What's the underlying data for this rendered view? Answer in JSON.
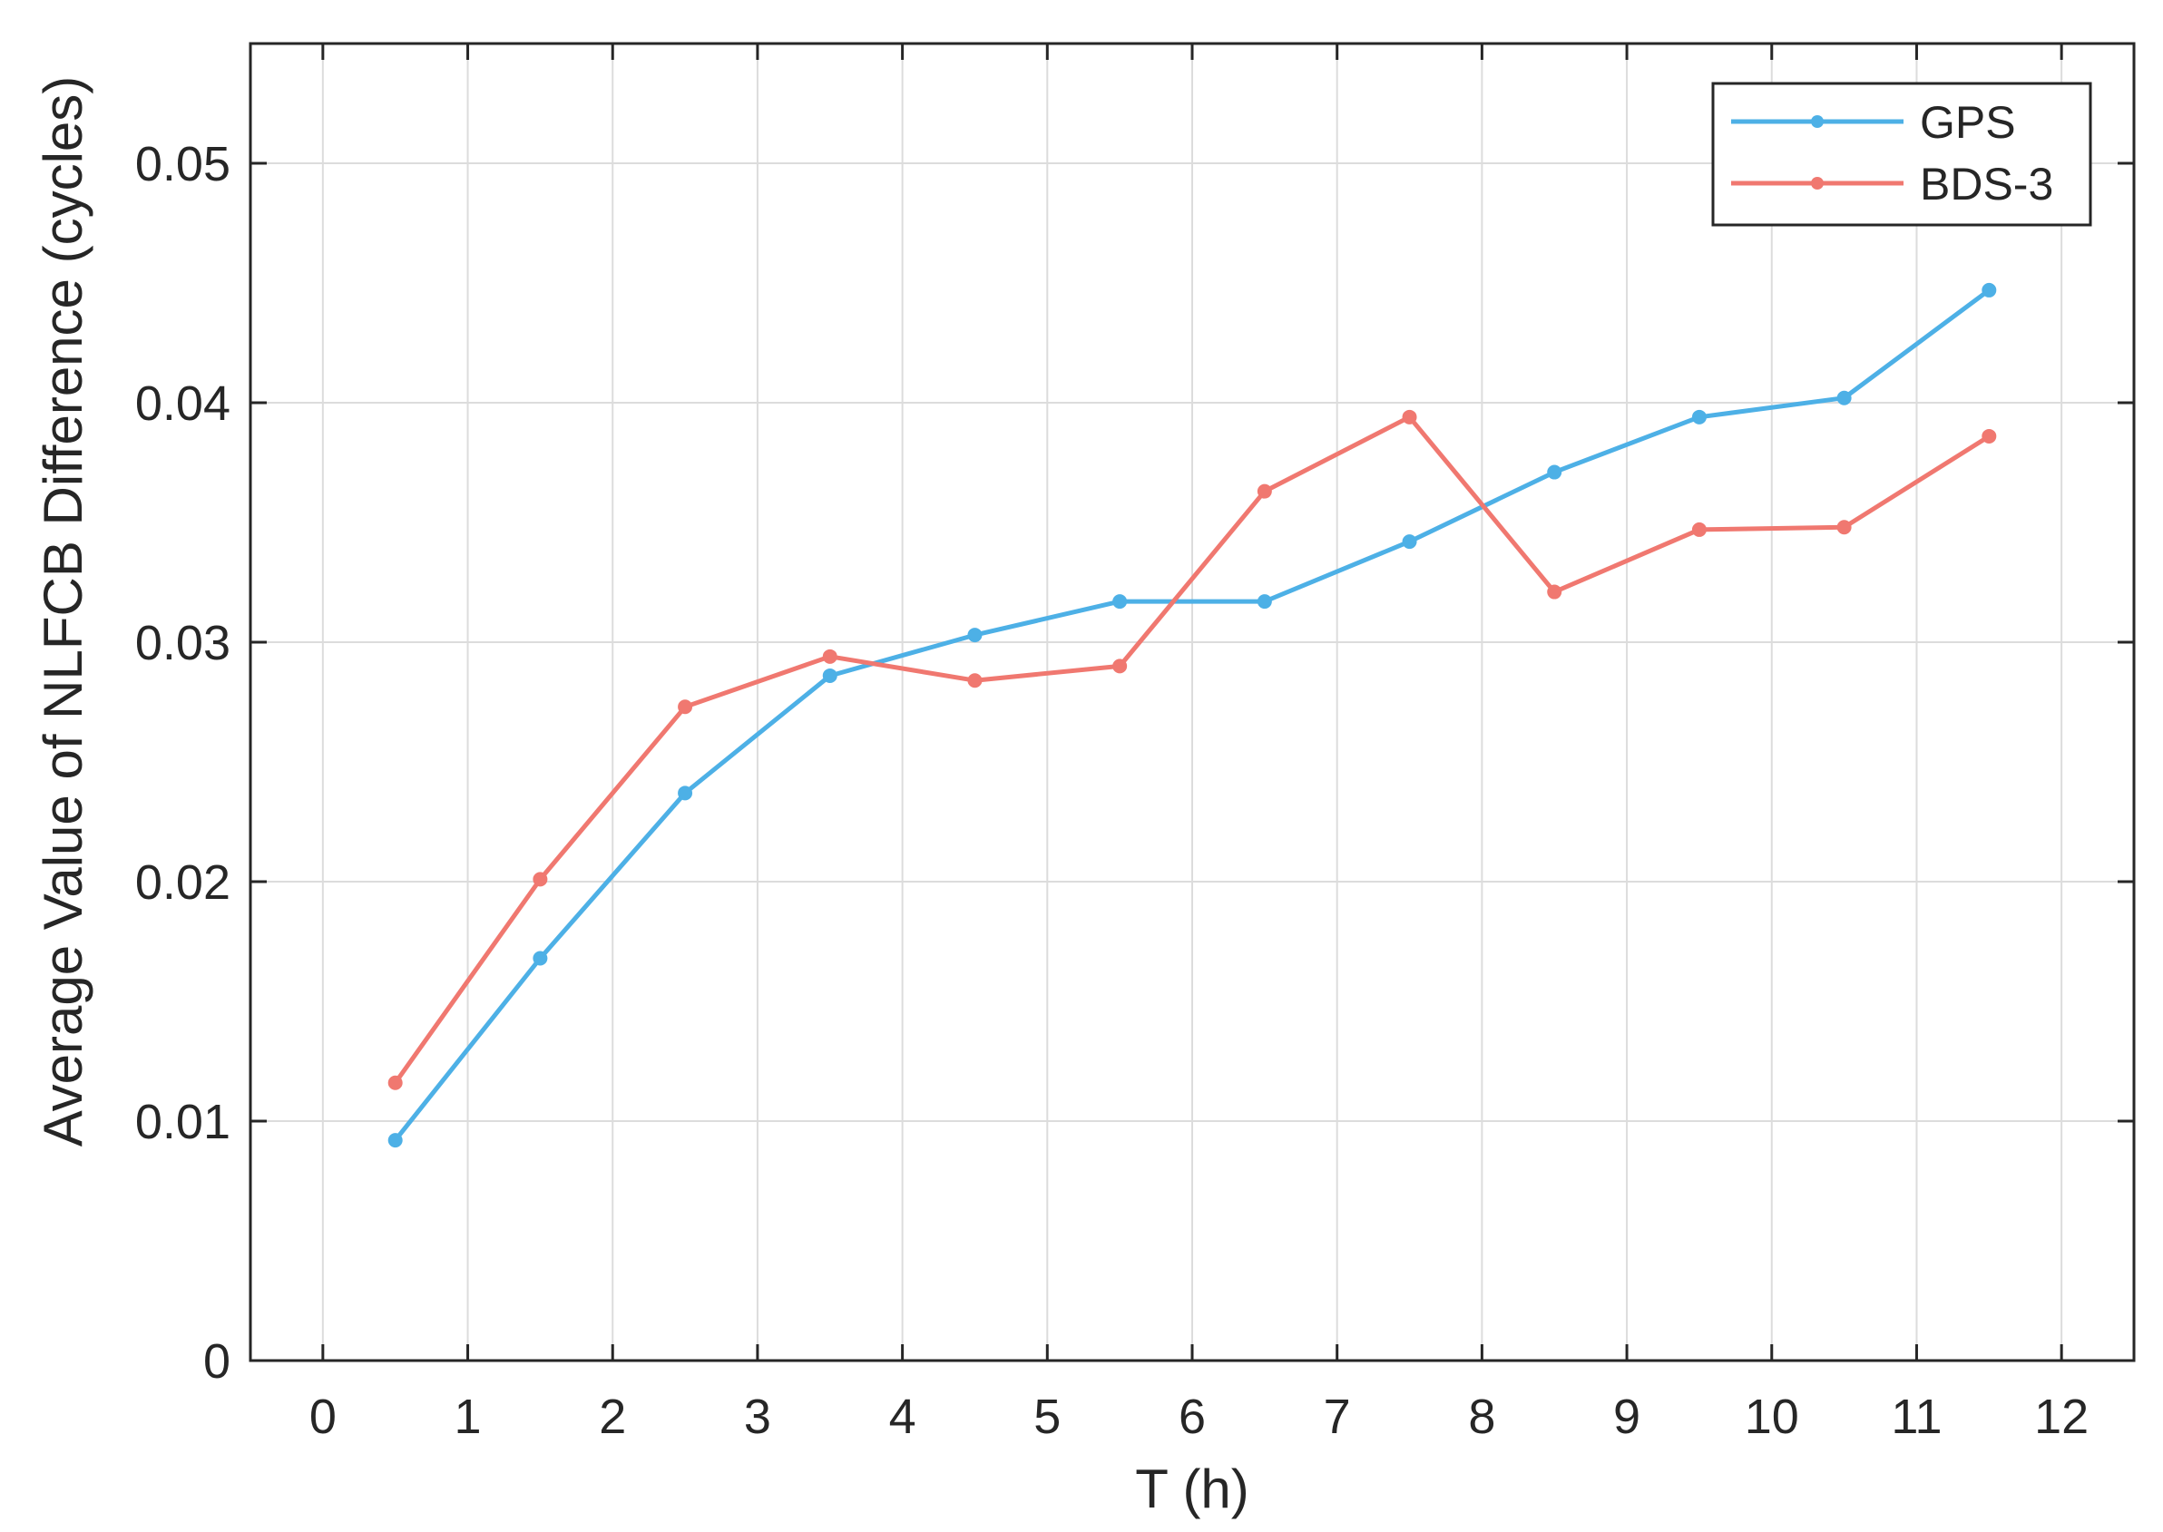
{
  "chart_data": {
    "type": "line",
    "title": "",
    "xlabel": "T (h)",
    "ylabel": "Average Value of NLFCB Difference (cycles)",
    "xlim": [
      -0.5,
      12.5
    ],
    "ylim": [
      0,
      0.055
    ],
    "xticks": [
      0,
      1,
      2,
      3,
      4,
      5,
      6,
      7,
      8,
      9,
      10,
      11,
      12
    ],
    "xtick_labels": [
      "0",
      "1",
      "2",
      "3",
      "4",
      "5",
      "6",
      "7",
      "8",
      "9",
      "10",
      "11",
      "12"
    ],
    "yticks": [
      0,
      0.01,
      0.02,
      0.03,
      0.04,
      0.05
    ],
    "ytick_labels": [
      "0",
      "0.01",
      "0.02",
      "0.03",
      "0.04",
      "0.05"
    ],
    "grid": true,
    "legend_position": "top-right",
    "x": [
      0.5,
      1.5,
      2.5,
      3.5,
      4.5,
      5.5,
      6.5,
      7.5,
      8.5,
      9.5,
      10.5,
      11.5
    ],
    "series": [
      {
        "name": "GPS",
        "color": "#4DB0E6",
        "values": [
          0.0092,
          0.0168,
          0.0237,
          0.0286,
          0.0303,
          0.0317,
          0.0317,
          0.0342,
          0.0371,
          0.0394,
          0.0402,
          0.0447
        ]
      },
      {
        "name": "BDS-3",
        "color": "#F07870",
        "values": [
          0.0116,
          0.0201,
          0.0273,
          0.0294,
          0.0284,
          0.029,
          0.0363,
          0.0394,
          0.0321,
          0.0347,
          0.0348,
          0.0386
        ]
      }
    ]
  }
}
